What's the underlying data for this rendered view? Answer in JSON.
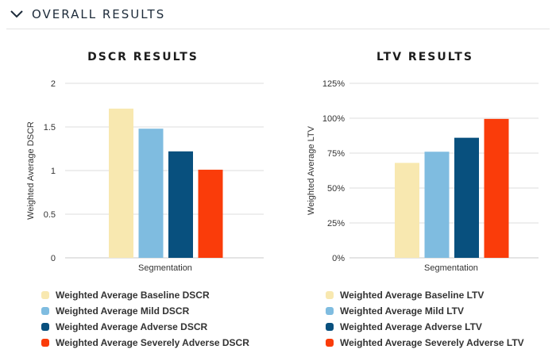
{
  "section": {
    "title": "OVERALL RESULTS",
    "icon": "chevron-down-icon"
  },
  "colors": {
    "baseline": "#f8e8b0",
    "mild": "#7fbce0",
    "adverse": "#08507e",
    "severe": "#fa3c0a"
  },
  "chart_data": [
    {
      "type": "bar",
      "title": "DSCR RESULTS",
      "xlabel": "Segmentation",
      "ylabel": "Weighted Average DSCR",
      "categories": [
        "Segmentation"
      ],
      "ylim": [
        0,
        2
      ],
      "yticks": [
        "0",
        "0.5",
        "1",
        "1.5",
        "2"
      ],
      "grid": true,
      "legend": "bottom",
      "series": [
        {
          "name": "Weighted Average Baseline DSCR",
          "values": [
            1.71
          ],
          "color": "#f8e8b0"
        },
        {
          "name": "Weighted Average Mild DSCR",
          "values": [
            1.48
          ],
          "color": "#7fbce0"
        },
        {
          "name": "Weighted Average Adverse DSCR",
          "values": [
            1.22
          ],
          "color": "#08507e"
        },
        {
          "name": "Weighted Average Severely Adverse DSCR",
          "values": [
            1.01
          ],
          "color": "#fa3c0a"
        }
      ]
    },
    {
      "type": "bar",
      "title": "LTV RESULTS",
      "xlabel": "Segmentation",
      "ylabel": "Weighted Average LTV",
      "categories": [
        "Segmentation"
      ],
      "ylim": [
        0,
        125
      ],
      "yticks": [
        "0%",
        "25%",
        "50%",
        "75%",
        "100%",
        "125%"
      ],
      "grid": true,
      "legend": "bottom",
      "series": [
        {
          "name": "Weighted Average Baseline LTV",
          "values": [
            68
          ],
          "color": "#f8e8b0"
        },
        {
          "name": "Weighted Average Mild LTV",
          "values": [
            76
          ],
          "color": "#7fbce0"
        },
        {
          "name": "Weighted Average Adverse LTV",
          "values": [
            86
          ],
          "color": "#08507e"
        },
        {
          "name": "Weighted Average Severely Adverse LTV",
          "values": [
            99.5
          ],
          "color": "#fa3c0a"
        }
      ]
    }
  ]
}
